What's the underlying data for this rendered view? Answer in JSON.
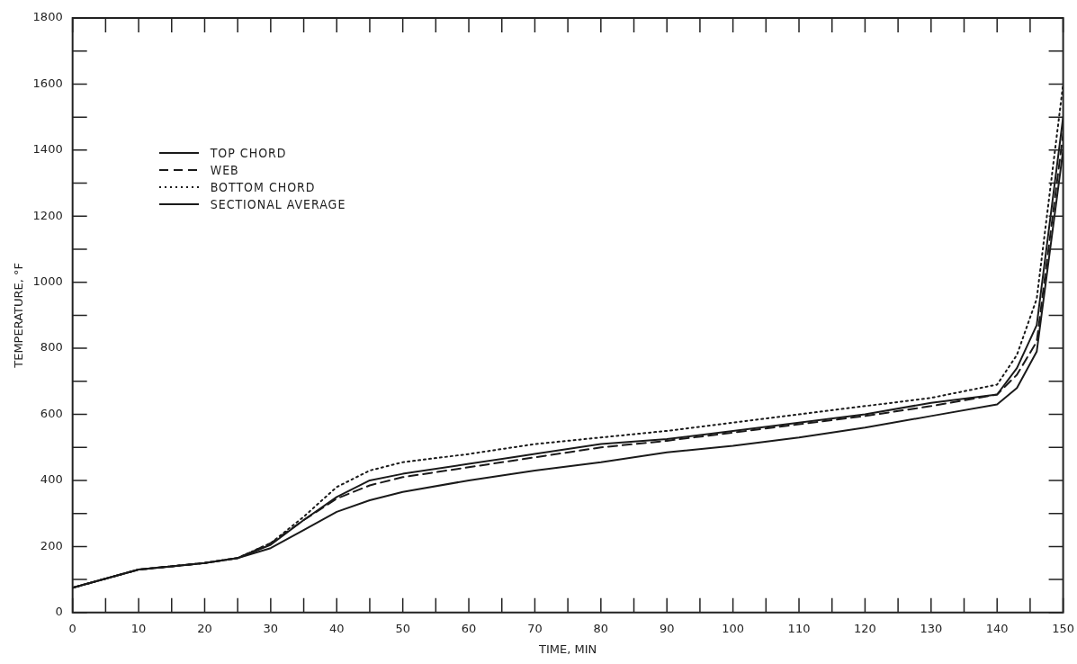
{
  "chart_data": {
    "type": "line",
    "xlabel": "TIME, MIN",
    "ylabel": "TEMPERATURE, °F",
    "xlim": [
      0,
      150
    ],
    "ylim": [
      0,
      1800
    ],
    "xticks": [
      0,
      {
        "value": 5,
        "label": null
      },
      10,
      {
        "value": 15,
        "label": null
      },
      20,
      {
        "value": 25,
        "label": null
      },
      30,
      {
        "value": 35,
        "label": null
      },
      40,
      {
        "value": 45,
        "label": null
      },
      50,
      {
        "value": 55,
        "label": null
      },
      60,
      {
        "value": 65,
        "label": null
      },
      70,
      {
        "value": 75,
        "label": null
      },
      80,
      {
        "value": 85,
        "label": null
      },
      90,
      {
        "value": 95,
        "label": null
      },
      100,
      {
        "value": 105,
        "label": null
      },
      110,
      {
        "value": 115,
        "label": null
      },
      120,
      {
        "value": 125,
        "label": null
      },
      130,
      {
        "value": 135,
        "label": null
      },
      140,
      {
        "value": 145,
        "label": null
      },
      150
    ],
    "yticks": [
      0,
      {
        "value": 100,
        "label": null
      },
      200,
      {
        "value": 300,
        "label": null
      },
      400,
      {
        "value": 500,
        "label": null
      },
      600,
      {
        "value": 700,
        "label": null
      },
      800,
      {
        "value": 900,
        "label": null
      },
      1000,
      {
        "value": 1100,
        "label": null
      },
      1200,
      {
        "value": 1300,
        "label": null
      },
      1400,
      {
        "value": 1500,
        "label": null
      },
      1600,
      {
        "value": 1700,
        "label": null
      },
      1800
    ],
    "grid": false,
    "legend": "top left",
    "marker": "none",
    "x": [
      0,
      10,
      15,
      20,
      25,
      30,
      35,
      40,
      45,
      50,
      60,
      70,
      80,
      90,
      100,
      110,
      120,
      130,
      140,
      143,
      146,
      150
    ],
    "series": [
      {
        "name": "TOP CHORD",
        "color": "#1a1a1a",
        "line_style": "solid",
        "values": [
          75,
          130,
          140,
          150,
          165,
          195,
          250,
          305,
          340,
          365,
          400,
          430,
          455,
          485,
          505,
          530,
          560,
          595,
          630,
          680,
          790,
          1400
        ]
      },
      {
        "name": "WEB",
        "color": "#1a1a1a",
        "line_style": "dashed",
        "values": [
          75,
          130,
          140,
          150,
          165,
          210,
          280,
          345,
          385,
          410,
          440,
          470,
          500,
          520,
          545,
          570,
          595,
          625,
          660,
          720,
          820,
          1450
        ]
      },
      {
        "name": "BOTTOM CHORD",
        "color": "#1a1a1a",
        "line_style": "dotted",
        "values": [
          75,
          130,
          140,
          150,
          165,
          210,
          290,
          380,
          430,
          455,
          480,
          510,
          530,
          550,
          575,
          600,
          625,
          650,
          690,
          780,
          950,
          1600
        ]
      },
      {
        "name": "SECTIONAL AVERAGE",
        "color": "#1a1a1a",
        "line_style": "solid",
        "values": [
          75,
          130,
          140,
          150,
          165,
          205,
          280,
          350,
          400,
          420,
          450,
          480,
          510,
          525,
          550,
          575,
          600,
          635,
          660,
          740,
          870,
          1500
        ]
      }
    ]
  }
}
